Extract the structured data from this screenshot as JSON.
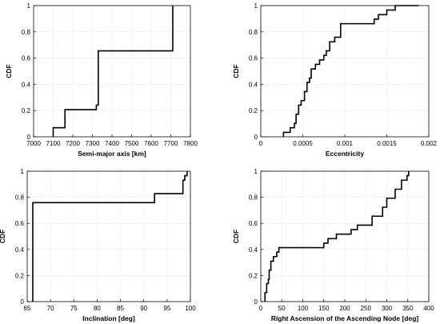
{
  "chart_data": [
    {
      "type": "line",
      "title": "",
      "xlabel": "Semi-major axis [km]",
      "ylabel": "CDF",
      "xlim": [
        7000,
        7800
      ],
      "ylim": [
        0,
        1
      ],
      "xticks": [
        7000,
        7100,
        7200,
        7300,
        7400,
        7500,
        7600,
        7700,
        7800
      ],
      "xtick_labels": [
        "7000",
        "7100",
        "7200",
        "7300",
        "7400",
        "7500",
        "7600",
        "7700",
        "7800"
      ],
      "yticks": [
        0,
        0.2,
        0.4,
        0.6,
        0.8,
        1
      ],
      "ytick_labels": [
        "0",
        "0.2",
        "0.4",
        "0.6",
        "0.8",
        "1"
      ],
      "grid": true,
      "series": [
        {
          "style": "step",
          "x": [
            7100,
            7100,
            7160,
            7160,
            7320,
            7320,
            7330,
            7330,
            7710,
            7710
          ],
          "y": [
            0,
            0.069,
            0.069,
            0.207,
            0.207,
            0.241,
            0.241,
            0.655,
            0.655,
            1.0
          ]
        }
      ]
    },
    {
      "type": "line",
      "title": "",
      "xlabel": "Eccentricity",
      "ylabel": "CDF",
      "xlim": [
        0,
        0.002
      ],
      "ylim": [
        0,
        1
      ],
      "xticks": [
        0,
        0.0005,
        0.001,
        0.0015,
        0.002
      ],
      "xtick_labels": [
        "0",
        "0.0005",
        "0.001",
        "0.0015",
        "0.002"
      ],
      "yticks": [
        0,
        0.2,
        0.4,
        0.6,
        0.8,
        1
      ],
      "ytick_labels": [
        "0",
        "0.2",
        "0.4",
        "0.6",
        "0.8",
        "1"
      ],
      "grid": true,
      "series": [
        {
          "style": "step",
          "x": [
            0.00027,
            0.00027,
            0.00035,
            0.00035,
            0.0004,
            0.0004,
            0.00042,
            0.00042,
            0.00045,
            0.00045,
            0.00048,
            0.00048,
            0.00052,
            0.00052,
            0.00055,
            0.00055,
            0.00058,
            0.00058,
            0.0006,
            0.0006,
            0.00065,
            0.00065,
            0.0007,
            0.0007,
            0.00075,
            0.00075,
            0.00078,
            0.00078,
            0.00082,
            0.00082,
            0.00088,
            0.00088,
            0.00095,
            0.00095,
            0.00135,
            0.00135,
            0.0014,
            0.0014,
            0.0015,
            0.0015,
            0.0016,
            0.0016,
            0.00188,
            0.00188
          ],
          "y": [
            0,
            0.034,
            0.034,
            0.069,
            0.069,
            0.103,
            0.103,
            0.172,
            0.172,
            0.241,
            0.241,
            0.276,
            0.276,
            0.345,
            0.345,
            0.414,
            0.414,
            0.448,
            0.448,
            0.517,
            0.517,
            0.552,
            0.552,
            0.586,
            0.586,
            0.621,
            0.621,
            0.655,
            0.655,
            0.724,
            0.724,
            0.759,
            0.759,
            0.862,
            0.862,
            0.897,
            0.897,
            0.931,
            0.931,
            0.966,
            0.966,
            1.0,
            1.0,
            1.0
          ]
        }
      ]
    },
    {
      "type": "line",
      "title": "",
      "xlabel": "Inclination [deg]",
      "ylabel": "CDF",
      "xlim": [
        65,
        100
      ],
      "ylim": [
        0,
        1
      ],
      "xticks": [
        65,
        70,
        75,
        80,
        85,
        90,
        95,
        100
      ],
      "xtick_labels": [
        "65",
        "70",
        "75",
        "80",
        "85",
        "90",
        "95",
        "100"
      ],
      "yticks": [
        0,
        0.2,
        0.4,
        0.6,
        0.8,
        1
      ],
      "ytick_labels": [
        "0",
        "0.2",
        "0.4",
        "0.6",
        "0.8",
        "1"
      ],
      "grid": true,
      "series": [
        {
          "style": "step",
          "x": [
            66.2,
            66.2,
            92.3,
            92.3,
            98.4,
            98.4,
            98.8,
            98.8,
            99.3,
            99.3
          ],
          "y": [
            0,
            0.759,
            0.759,
            0.828,
            0.828,
            0.931,
            0.931,
            0.966,
            0.966,
            1.0
          ]
        }
      ]
    },
    {
      "type": "line",
      "title": "",
      "xlabel": "Right Ascension of the Ascending Node [deg]",
      "ylabel": "CDF",
      "xlim": [
        0,
        400
      ],
      "ylim": [
        0,
        1
      ],
      "xticks": [
        0,
        50,
        100,
        150,
        200,
        250,
        300,
        350,
        400
      ],
      "xtick_labels": [
        "0",
        "50",
        "100",
        "150",
        "200",
        "250",
        "300",
        "350",
        "400"
      ],
      "yticks": [
        0,
        0.2,
        0.4,
        0.6,
        0.8,
        1
      ],
      "ytick_labels": [
        "0",
        "0.2",
        "0.4",
        "0.6",
        "0.8",
        "1"
      ],
      "grid": true,
      "series": [
        {
          "style": "step",
          "x": [
            10,
            10,
            14,
            14,
            18,
            18,
            20,
            20,
            24,
            24,
            30,
            30,
            38,
            38,
            43,
            43,
            150,
            150,
            160,
            160,
            180,
            180,
            215,
            215,
            230,
            230,
            265,
            265,
            290,
            290,
            300,
            300,
            320,
            320,
            335,
            335,
            348,
            348,
            352,
            352
          ],
          "y": [
            0,
            0.069,
            0.069,
            0.138,
            0.138,
            0.172,
            0.172,
            0.241,
            0.241,
            0.31,
            0.31,
            0.345,
            0.345,
            0.379,
            0.379,
            0.414,
            0.414,
            0.448,
            0.448,
            0.483,
            0.483,
            0.517,
            0.517,
            0.552,
            0.552,
            0.586,
            0.586,
            0.655,
            0.655,
            0.724,
            0.724,
            0.793,
            0.793,
            0.862,
            0.862,
            0.931,
            0.931,
            0.966,
            0.966,
            1.0
          ]
        }
      ]
    }
  ]
}
